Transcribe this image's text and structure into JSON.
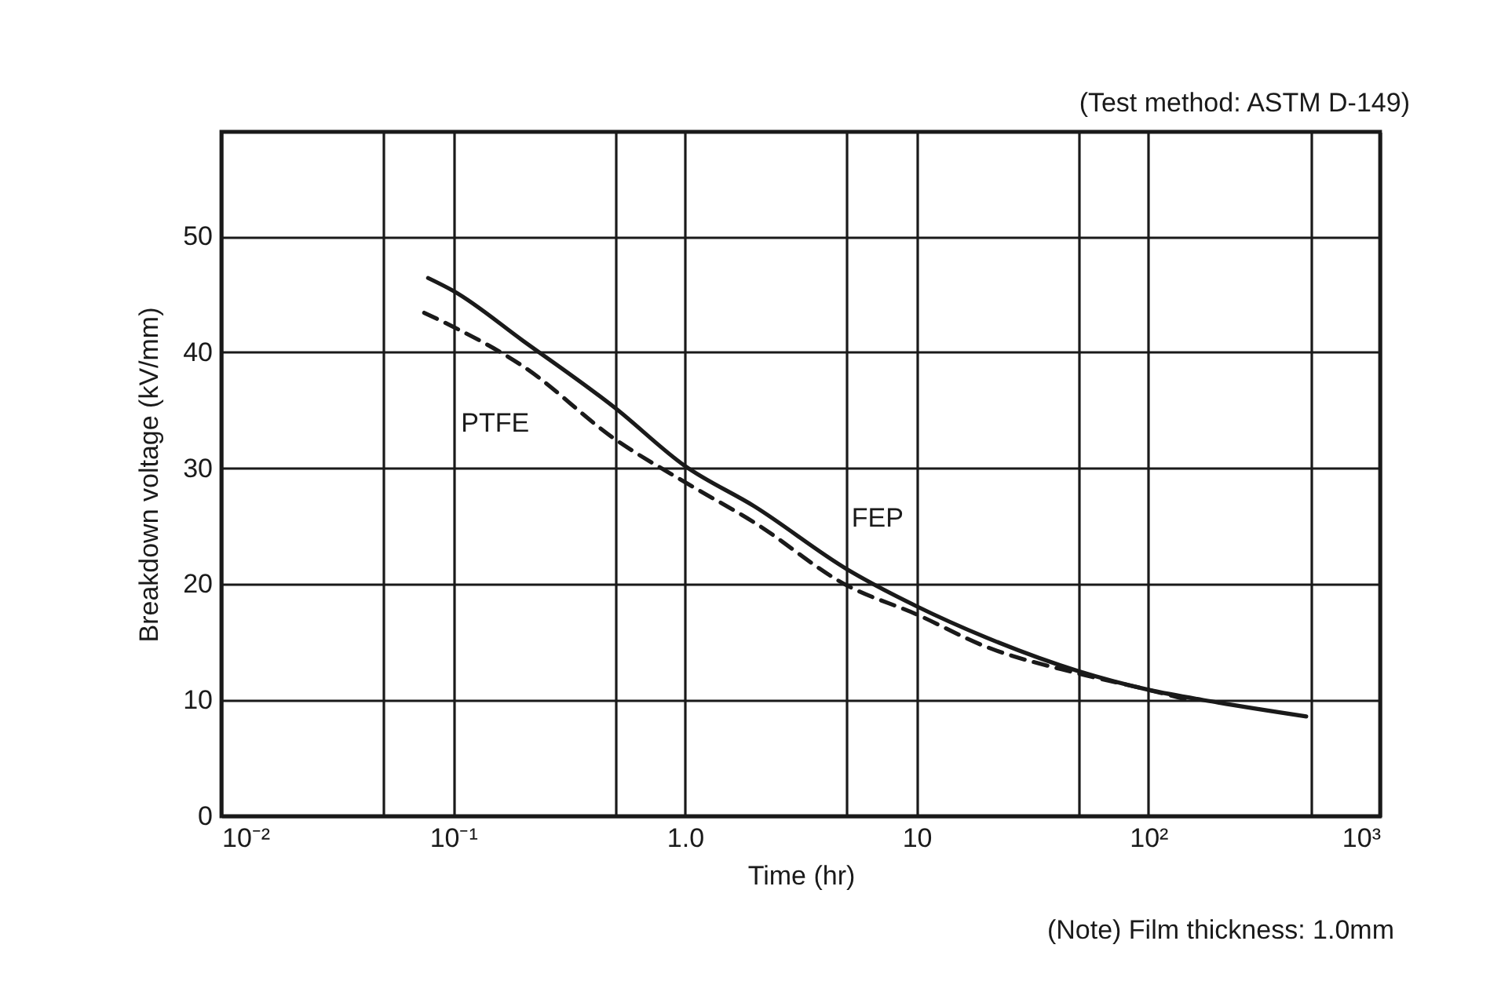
{
  "chart_data": {
    "type": "line",
    "xlabel": "Time (hr)",
    "ylabel": "Breakdown voltage (kV/mm)",
    "annotations": [
      "(Test method: ASTM D-149)",
      "(Note)  Film thickness: 1.0mm"
    ],
    "log": "x",
    "grid": true,
    "marker": "none",
    "xlim": [
      0.01,
      1000
    ],
    "xticks": [
      {
        "value": 0.01,
        "label": "10⁻²"
      },
      {
        "value": 0.05,
        "label": null
      },
      {
        "value": 0.1,
        "label": "10⁻¹"
      },
      {
        "value": 0.5,
        "label": null
      },
      {
        "value": 1,
        "label": "1.0"
      },
      {
        "value": 5,
        "label": null
      },
      10,
      {
        "value": 50,
        "label": null
      },
      {
        "value": 100,
        "label": "10²"
      },
      {
        "value": 500,
        "label": null
      },
      {
        "value": 1000,
        "label": "10³"
      }
    ],
    "ylim": [
      0,
      59
    ],
    "yticks": [
      0,
      10,
      20,
      30,
      40,
      50
    ],
    "series": [
      {
        "name": "PTFE",
        "color": "#1a1a1a",
        "line_style": "dashed",
        "x": [
          0.075,
          0.1,
          0.2,
          0.5,
          1,
          2,
          5,
          10,
          20,
          50,
          100,
          150
        ],
        "values": [
          43.4,
          42.2,
          38.8,
          32.5,
          28.8,
          25.3,
          19.9,
          17.4,
          14.6,
          12.3,
          10.9,
          10.0
        ]
      },
      {
        "name": "FEP",
        "color": "#1a1a1a",
        "line_style": "solid",
        "x": [
          0.078,
          0.1,
          0.2,
          0.5,
          1,
          2,
          5,
          10,
          20,
          50,
          100,
          200,
          480
        ],
        "values": [
          46.4,
          45.3,
          41,
          35.2,
          30.2,
          26.7,
          21.3,
          18.1,
          15.4,
          12.5,
          10.9,
          9.8,
          8.6
        ]
      }
    ]
  }
}
